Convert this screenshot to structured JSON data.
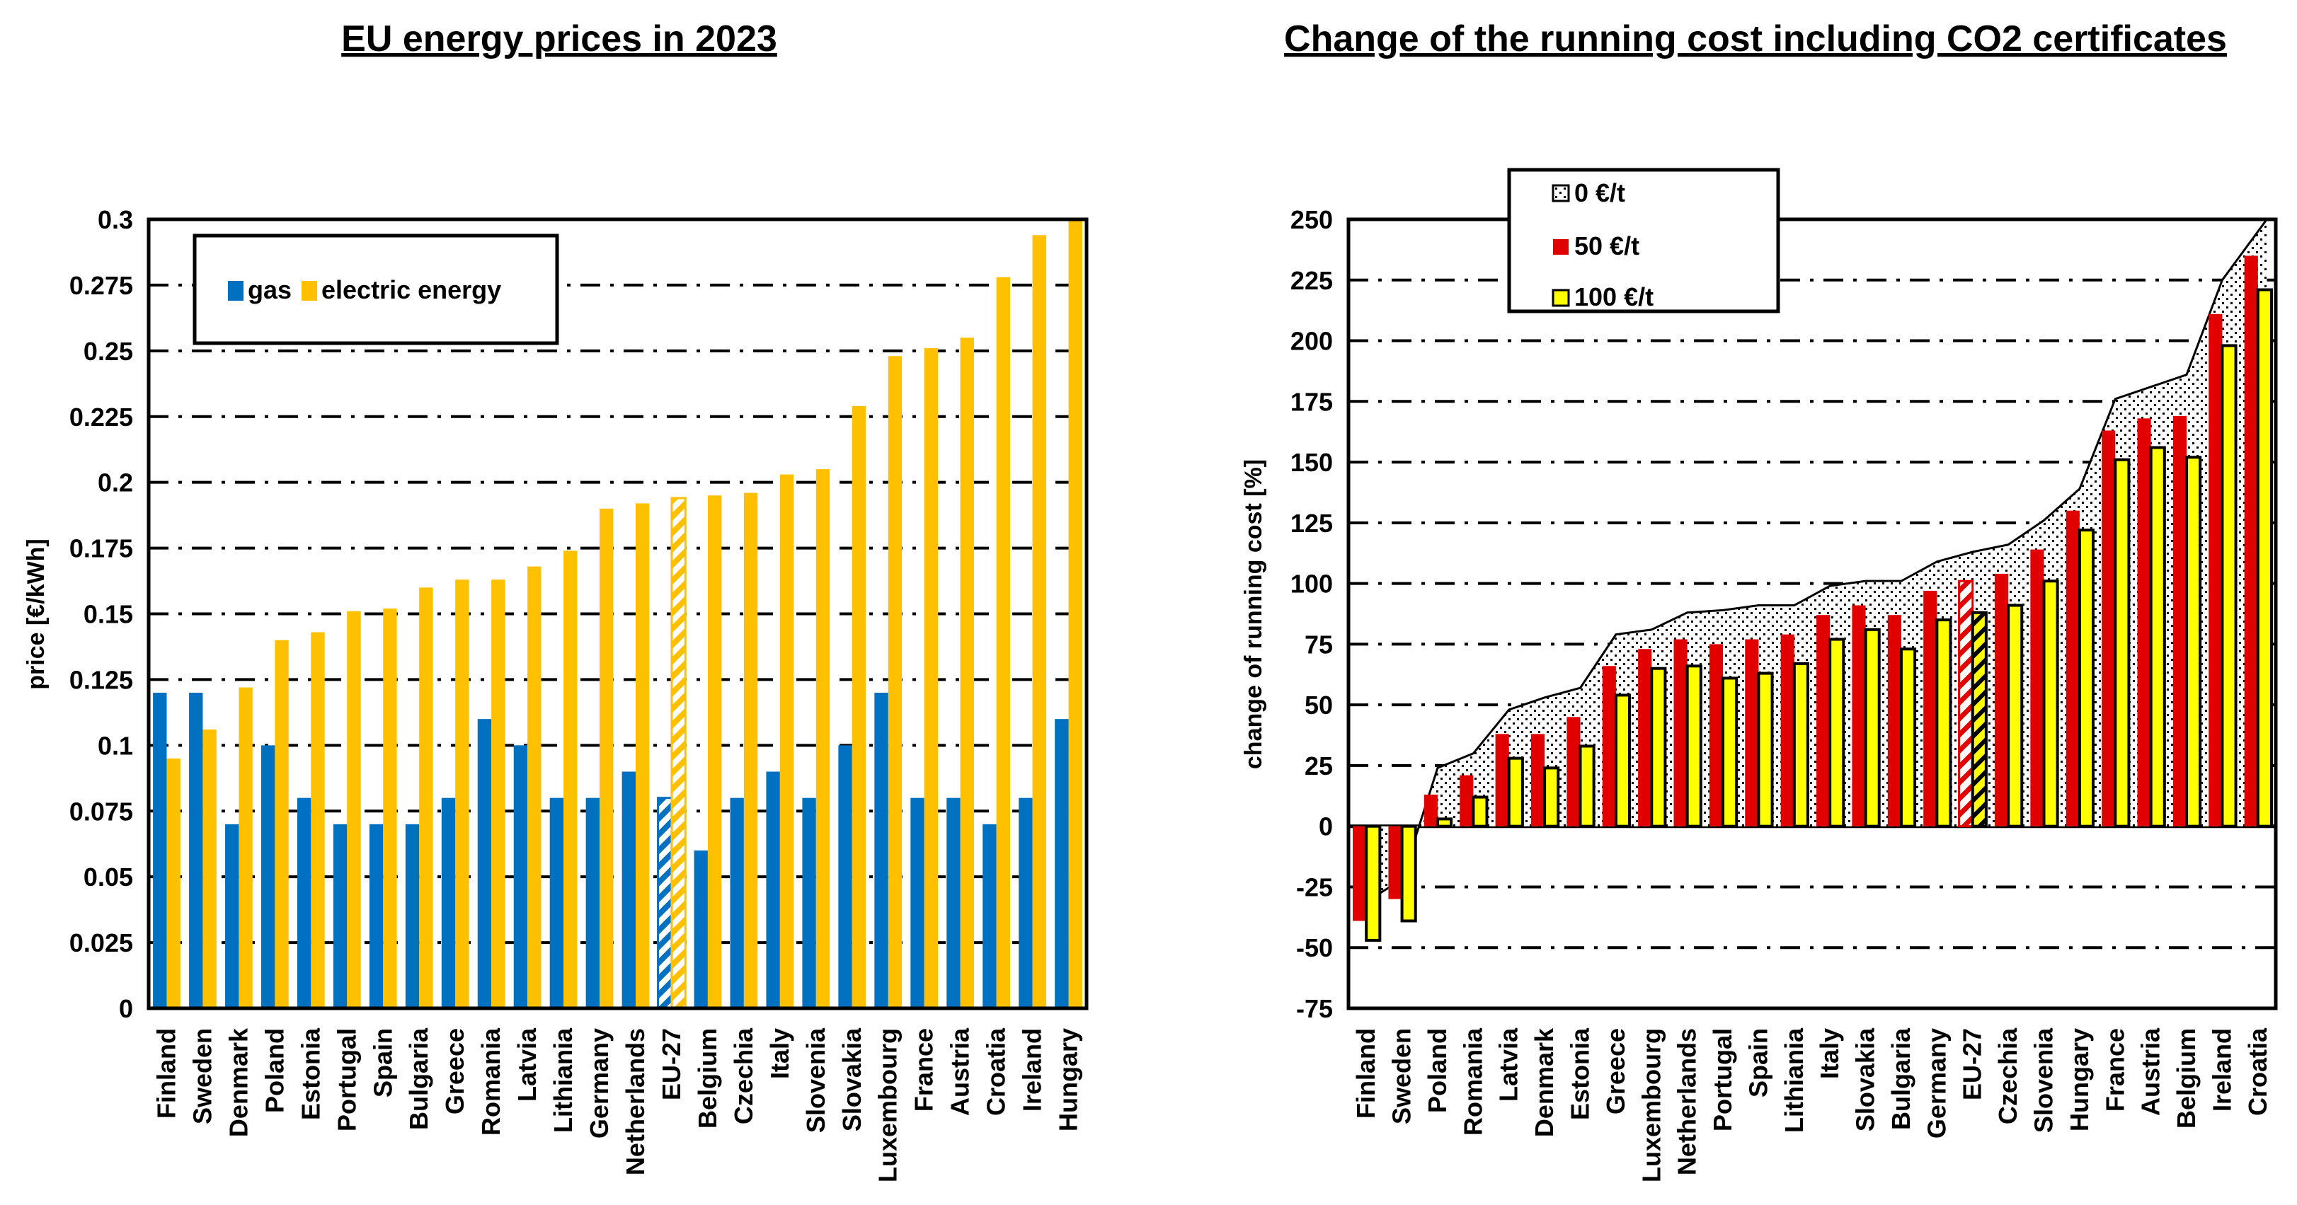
{
  "chart_data": [
    {
      "id": "left",
      "type": "bar",
      "title": "EU energy prices in 2023",
      "xlabel": "",
      "ylabel": "price [€/kWh]",
      "ylim": [
        0,
        0.3
      ],
      "yticks": [
        0,
        0.025,
        0.05,
        0.075,
        0.1,
        0.125,
        0.15,
        0.175,
        0.2,
        0.225,
        0.25,
        0.275,
        0.3
      ],
      "ytick_labels": [
        "0",
        "0.025",
        "0.05",
        "0.075",
        "0.1",
        "0.125",
        "0.15",
        "0.175",
        "0.2",
        "0.225",
        "0.25",
        "0.275",
        "0.3"
      ],
      "grid": true,
      "legend_position": "upper-left",
      "categories": [
        "Finland",
        "Sweden",
        "Denmark",
        "Poland",
        "Estonia",
        "Portugal",
        "Spain",
        "Bulgaria",
        "Greece",
        "Romania",
        "Latvia",
        "Lithiania",
        "Germany",
        "Netherlands",
        "EU-27",
        "Belgium",
        "Czechia",
        "Italy",
        "Slovenia",
        "Slovakia",
        "Luxembourg",
        "France",
        "Austria",
        "Croatia",
        "Ireland",
        "Hungary"
      ],
      "highlight_category": "EU-27",
      "series": [
        {
          "name": "gas",
          "color": "#0070C0",
          "values": [
            0.12,
            0.12,
            0.07,
            0.1,
            0.08,
            0.07,
            0.07,
            0.07,
            0.08,
            0.11,
            0.1,
            0.08,
            0.08,
            0.09,
            0.08,
            0.06,
            0.08,
            0.09,
            0.08,
            0.1,
            0.12,
            0.08,
            0.08,
            0.07,
            0.08,
            0.11
          ]
        },
        {
          "name": "electric energy",
          "color": "#FFC000",
          "values": [
            0.095,
            0.106,
            0.122,
            0.14,
            0.143,
            0.151,
            0.152,
            0.16,
            0.163,
            0.163,
            0.168,
            0.174,
            0.19,
            0.192,
            0.194,
            0.195,
            0.196,
            0.203,
            0.205,
            0.229,
            0.248,
            0.251,
            0.255,
            0.278,
            0.294,
            0.3
          ]
        }
      ]
    },
    {
      "id": "right",
      "type": "bar",
      "title": "Change of the running cost including CO2 certificates",
      "xlabel": "",
      "ylabel": "change of running cost [%]",
      "ylim": [
        -75,
        250
      ],
      "yticks": [
        -75,
        -50,
        -25,
        0,
        25,
        50,
        75,
        100,
        125,
        150,
        175,
        200,
        225,
        250
      ],
      "ytick_labels": [
        "-75",
        "-50",
        "-25",
        "0",
        "25",
        "50",
        "75",
        "100",
        "125",
        "150",
        "175",
        "200",
        "225",
        "250"
      ],
      "grid": true,
      "legend_position": "upper-left",
      "categories": [
        "Finland",
        "Sweden",
        "Poland",
        "Romania",
        "Latvia",
        "Denmark",
        "Estonia",
        "Greece",
        "Luxembourg",
        "Netherlands",
        "Portugal",
        "Spain",
        "Lithiania",
        "Italy",
        "Slovakia",
        "Bulgaria",
        "Germany",
        "EU-27",
        "Czechia",
        "Slovenia",
        "Hungary",
        "France",
        "Austria",
        "Belgium",
        "Ireland",
        "Croatia"
      ],
      "highlight_category": "EU-27",
      "series": [
        {
          "name": "0 €/t",
          "kind": "area",
          "color": "#808080",
          "values": [
            -31,
            -22,
            24,
            30,
            48,
            53,
            57,
            79,
            81,
            88,
            89,
            91,
            91,
            99,
            101,
            101,
            109,
            113,
            116,
            126,
            139,
            176,
            181,
            186,
            225,
            250
          ]
        },
        {
          "name": "50 €/t",
          "kind": "bar",
          "color": "#E00000",
          "values": [
            -39,
            -30,
            13,
            21,
            38,
            38,
            45,
            66,
            73,
            77,
            75,
            77,
            79,
            87,
            91,
            87,
            97,
            101,
            104,
            114,
            130,
            163,
            168,
            169,
            211,
            235
          ]
        },
        {
          "name": "100 €/t",
          "kind": "bar",
          "color": "#FFFF00",
          "values": [
            -47,
            -39,
            3,
            12,
            28,
            24,
            33,
            54,
            65,
            66,
            61,
            63,
            67,
            77,
            81,
            73,
            85,
            88,
            91,
            101,
            122,
            151,
            156,
            152,
            198,
            221
          ]
        }
      ]
    }
  ]
}
